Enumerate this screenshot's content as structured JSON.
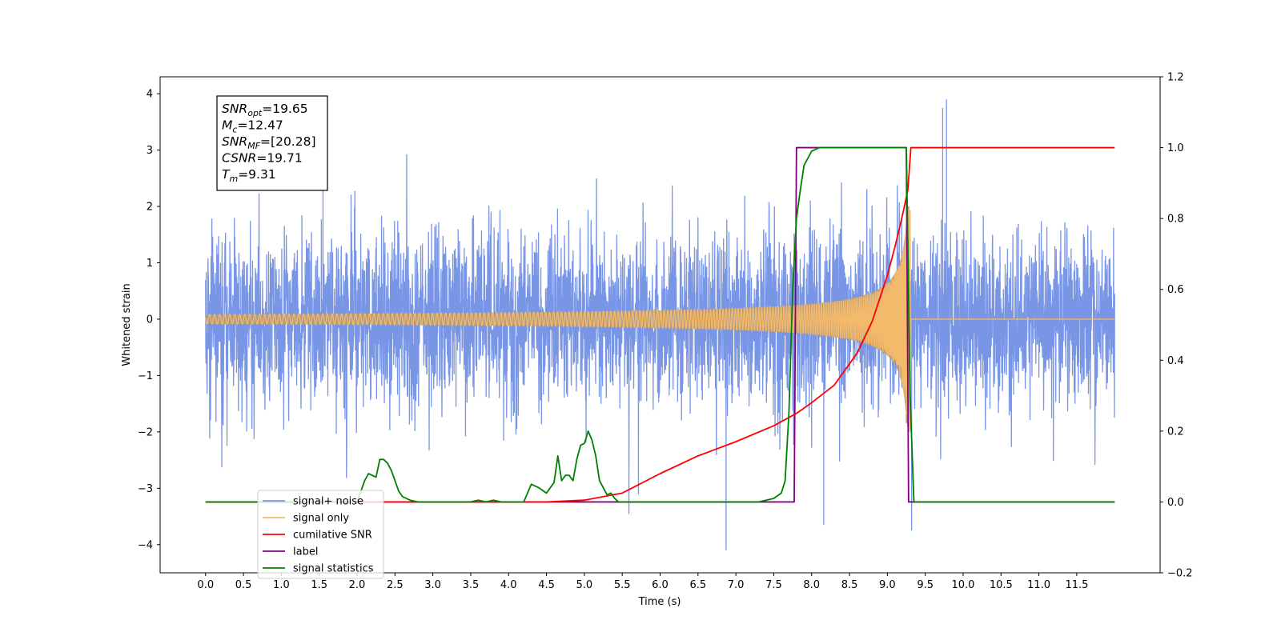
{
  "chart_data": {
    "type": "line",
    "title": "",
    "xlabel": "Time (s)",
    "ylabel": "Whitened strain",
    "xlim": [
      -0.6,
      12.6
    ],
    "ylim": [
      -4.5,
      4.3
    ],
    "y2lim": [
      -0.2,
      1.2
    ],
    "x_ticks": [
      0.0,
      0.5,
      1.0,
      1.5,
      2.0,
      2.5,
      3.0,
      3.5,
      4.0,
      4.5,
      5.0,
      5.5,
      6.0,
      6.5,
      7.0,
      7.5,
      8.0,
      8.5,
      9.0,
      9.5,
      10.0,
      10.5,
      11.0,
      11.5
    ],
    "x_tick_labels": [
      "0.0",
      "0.5",
      "1.0",
      "1.5",
      "2.0",
      "2.5",
      "3.0",
      "3.5",
      "4.0",
      "4.5",
      "5.0",
      "5.5",
      "6.0",
      "6.5",
      "7.0",
      "7.5",
      "8.0",
      "8.5",
      "9.0",
      "9.5",
      "10.0",
      "10.5",
      "11.0",
      "11.5"
    ],
    "y_ticks": [
      -4,
      -3,
      -2,
      -1,
      0,
      1,
      2,
      3,
      4
    ],
    "y_tick_labels": [
      "−4",
      "−3",
      "−2",
      "−1",
      "0",
      "1",
      "2",
      "3",
      "4"
    ],
    "y2_ticks": [
      -0.2,
      0.0,
      0.2,
      0.4,
      0.6,
      0.8,
      1.0,
      1.2
    ],
    "y2_tick_labels": [
      "−0.2",
      "0.0",
      "0.2",
      "0.4",
      "0.6",
      "0.8",
      "1.0",
      "1.2"
    ],
    "grid": false,
    "legend_placement": "lower-left",
    "annotation": {
      "lines": [
        {
          "name": "SNR",
          "sub": "opt",
          "value": "=19.65"
        },
        {
          "name": "M",
          "sub": "c",
          "value": "=12.47"
        },
        {
          "name": "SNR",
          "sub": "MF",
          "value": "=[20.28]"
        },
        {
          "name": "CSNR",
          "sub": "",
          "value": "=19.71"
        },
        {
          "name": "T",
          "sub": "m",
          "value": "=9.31"
        }
      ]
    },
    "series": [
      {
        "name": "signal+ noise",
        "axis": "left",
        "color": "#7895e6",
        "style": "noise",
        "x_range": [
          0.0,
          12.0
        ],
        "typical_range": [
          -2.0,
          2.1
        ],
        "extremes": {
          "max": 3.9,
          "min": -4.1
        }
      },
      {
        "name": "signal only",
        "axis": "left",
        "color": "#f3ba6b",
        "style": "chirp",
        "x_range": [
          0.0,
          12.0
        ],
        "merger_time": 9.31,
        "peak_amplitude": 2.0,
        "fill_color": "#b89b78"
      },
      {
        "name": "cumilative SNR",
        "axis": "right",
        "color": "#ff0000",
        "x": [
          0.0,
          4.5,
          5.0,
          5.5,
          6.0,
          6.5,
          7.0,
          7.5,
          7.8,
          8.0,
          8.3,
          8.6,
          8.8,
          9.0,
          9.1,
          9.2,
          9.27,
          9.31,
          9.32,
          12.0
        ],
        "y": [
          0.0,
          0.0,
          0.005,
          0.025,
          0.08,
          0.13,
          0.17,
          0.215,
          0.25,
          0.28,
          0.33,
          0.42,
          0.51,
          0.64,
          0.72,
          0.81,
          0.88,
          1.0,
          1.0,
          1.0
        ]
      },
      {
        "name": "label",
        "axis": "right",
        "color": "#800080",
        "x": [
          0.0,
          7.77,
          7.8,
          9.25,
          9.28,
          12.0
        ],
        "y": [
          0.0,
          0.0,
          1.0,
          1.0,
          0.0,
          0.0
        ]
      },
      {
        "name": "signal statistics",
        "axis": "right",
        "color": "#008000",
        "x": [
          0.0,
          2.0,
          2.1,
          2.15,
          2.25,
          2.3,
          2.35,
          2.4,
          2.45,
          2.5,
          2.55,
          2.6,
          2.7,
          2.8,
          3.0,
          3.5,
          3.6,
          3.7,
          3.8,
          3.9,
          4.0,
          4.2,
          4.3,
          4.4,
          4.5,
          4.6,
          4.65,
          4.7,
          4.75,
          4.8,
          4.85,
          4.9,
          4.95,
          5.0,
          5.05,
          5.1,
          5.15,
          5.2,
          5.3,
          5.35,
          5.4,
          5.45,
          7.3,
          7.4,
          7.5,
          7.6,
          7.65,
          7.7,
          7.75,
          7.8,
          7.85,
          7.9,
          8.0,
          8.1,
          8.2,
          9.25,
          9.3,
          9.35,
          12.0
        ],
        "y": [
          0.0,
          0.0,
          0.06,
          0.08,
          0.07,
          0.12,
          0.12,
          0.11,
          0.09,
          0.06,
          0.03,
          0.015,
          0.005,
          0.0,
          0.0,
          0.0,
          0.005,
          0.0,
          0.005,
          0.0,
          0.0,
          0.0,
          0.05,
          0.04,
          0.025,
          0.055,
          0.13,
          0.06,
          0.075,
          0.075,
          0.06,
          0.12,
          0.16,
          0.165,
          0.2,
          0.175,
          0.13,
          0.06,
          0.02,
          0.025,
          0.01,
          0.0,
          0.0,
          0.005,
          0.01,
          0.025,
          0.06,
          0.25,
          0.6,
          0.8,
          0.88,
          0.95,
          0.99,
          1.0,
          1.0,
          1.0,
          0.3,
          0.0,
          0.0
        ]
      }
    ]
  }
}
